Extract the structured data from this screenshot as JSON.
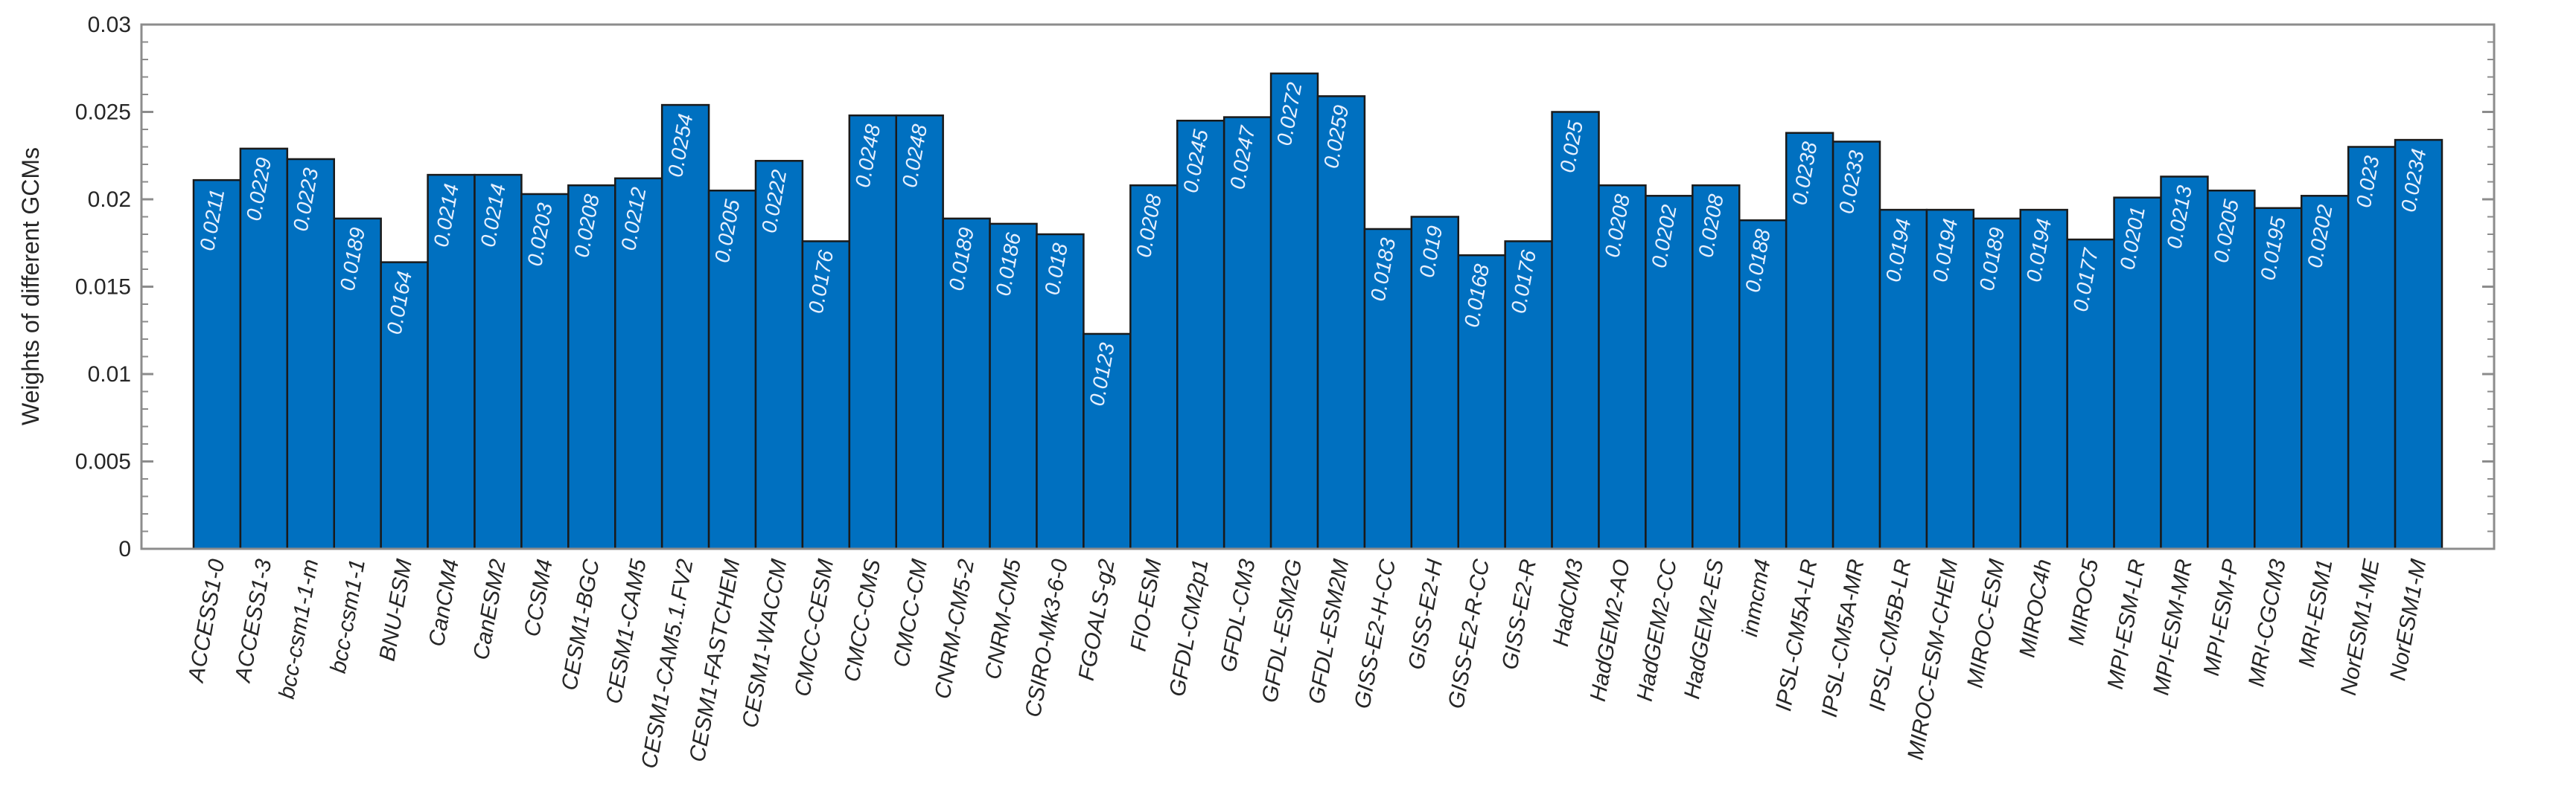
{
  "chart_data": {
    "type": "bar",
    "title": "",
    "xlabel": "",
    "ylabel": "Weights of different GCMs",
    "ylim": [
      0,
      0.03
    ],
    "yticks": [
      "0",
      "0.005",
      "0.01",
      "0.015",
      "0.02",
      "0.025",
      "0.03"
    ],
    "grid": false,
    "legend": "none",
    "bar_color": "#0070c0",
    "bar_edge_color": "#1a1a1a",
    "label_color": "#e6f0ff",
    "categories": [
      "ACCESS1-0",
      "ACCESS1-3",
      "bcc-csm1-1-m",
      "bcc-csm1-1",
      "BNU-ESM",
      "CanCM4",
      "CanESM2",
      "CCSM4",
      "CESM1-BGC",
      "CESM1-CAM5",
      "CESM1-CAM5.1.FV2",
      "CESM1-FASTCHEM",
      "CESM1-WACCM",
      "CMCC-CESM",
      "CMCC-CMS",
      "CMCC-CM",
      "CNRM-CM5-2",
      "CNRM-CM5",
      "CSIRO-Mk3-6-0",
      "FGOALS-g2",
      "FIO-ESM",
      "GFDL-CM2p1",
      "GFDL-CM3",
      "GFDL-ESM2G",
      "GFDL-ESM2M",
      "GISS-E2-H-CC",
      "GISS-E2-H",
      "GISS-E2-R-CC",
      "GISS-E2-R",
      "HadCM3",
      "HadGEM2-AO",
      "HadGEM2-CC",
      "HadGEM2-ES",
      "inmcm4",
      "IPSL-CM5A-LR",
      "IPSL-CM5A-MR",
      "IPSL-CM5B-LR",
      "MIROC-ESM-CHEM",
      "MIROC-ESM",
      "MIROC4h",
      "MIROC5",
      "MPI-ESM-LR",
      "MPI-ESM-MR",
      "MPI-ESM-P",
      "MRI-CGCM3",
      "MRI-ESM1",
      "NorESM1-ME",
      "NorESM1-M"
    ],
    "values": [
      0.0211,
      0.0229,
      0.0223,
      0.0189,
      0.0164,
      0.0214,
      0.0214,
      0.0203,
      0.0208,
      0.0212,
      0.0254,
      0.0205,
      0.0222,
      0.0176,
      0.0248,
      0.0248,
      0.0189,
      0.0186,
      0.018,
      0.0123,
      0.0208,
      0.0245,
      0.0247,
      0.0272,
      0.0259,
      0.0183,
      0.019,
      0.0168,
      0.0176,
      0.025,
      0.0208,
      0.0202,
      0.0208,
      0.0188,
      0.0238,
      0.0233,
      0.0194,
      0.0194,
      0.0189,
      0.0194,
      0.0177,
      0.0201,
      0.0213,
      0.0205,
      0.0195,
      0.0202,
      0.023,
      0.0234
    ],
    "value_labels": [
      "0.0211",
      "0.0229",
      "0.0223",
      "0.0189",
      "0.0164",
      "0.0214",
      "0.0214",
      "0.0203",
      "0.0208",
      "0.0212",
      "0.0254",
      "0.0205",
      "0.0222",
      "0.0176",
      "0.0248",
      "0.0248",
      "0.0189",
      "0.0186",
      "0.018",
      "0.0123",
      "0.0208",
      "0.0245",
      "0.0247",
      "0.0272",
      "0.0259",
      "0.0183",
      "0.019",
      "0.0168",
      "0.0176",
      "0.025",
      "0.0208",
      "0.0202",
      "0.0208",
      "0.0188",
      "0.0238",
      "0.0233",
      "0.0194",
      "0.0194",
      "0.0189",
      "0.0194",
      "0.0177",
      "0.0201",
      "0.0213",
      "0.0205",
      "0.0195",
      "0.0202",
      "0.023",
      "0.0234"
    ]
  }
}
